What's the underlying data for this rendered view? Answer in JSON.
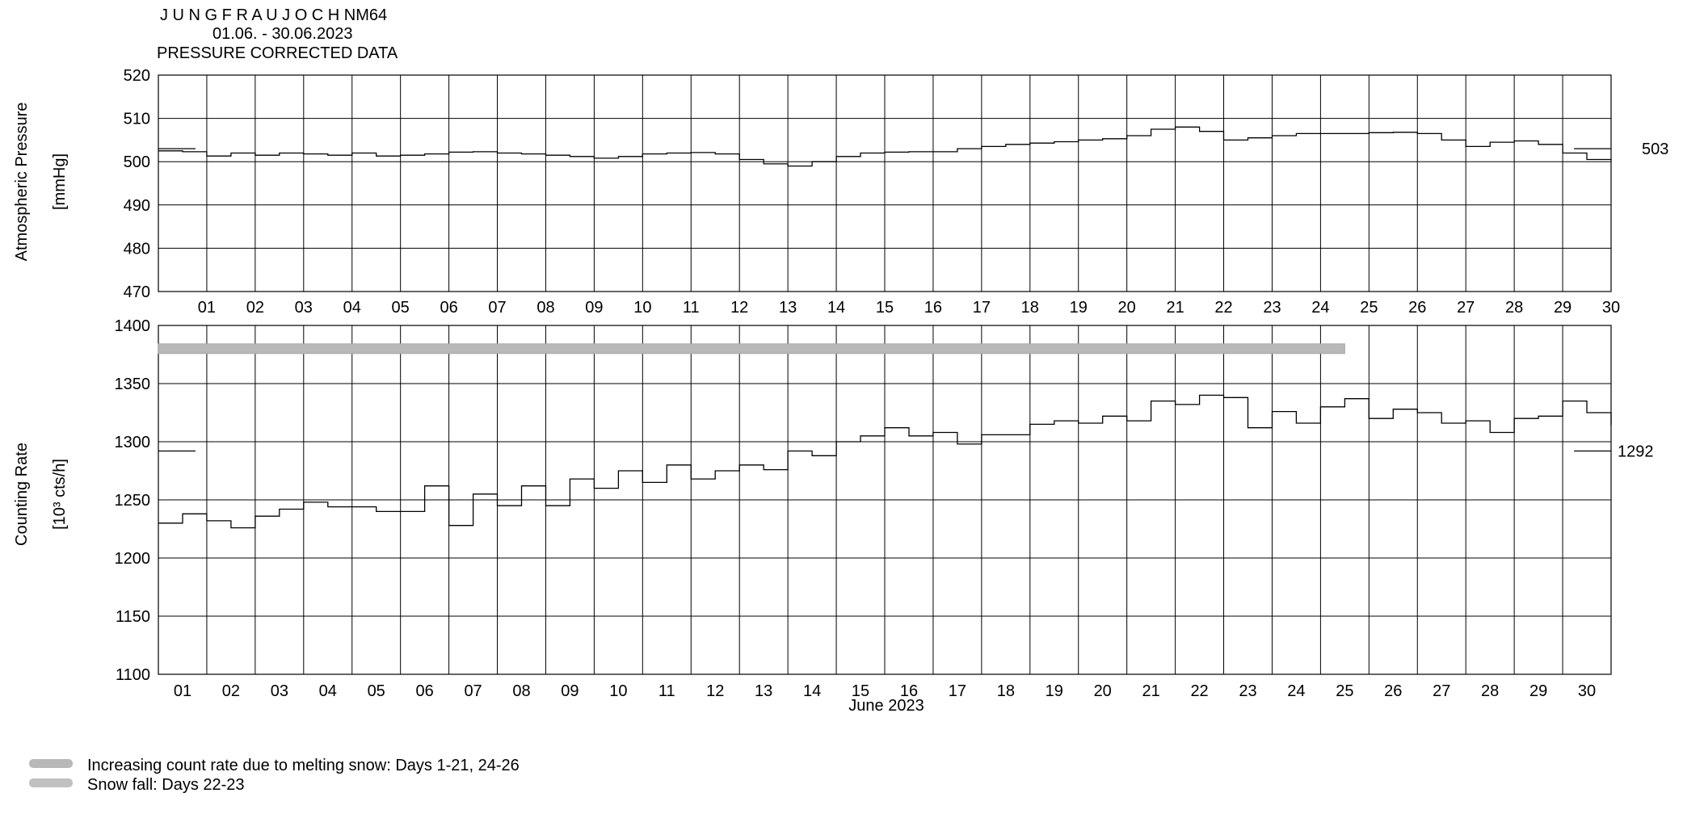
{
  "header": {
    "station": "J U N G F R A U J O C H  NM64",
    "period": "01.06. - 30.06.2023",
    "subtitle": "PRESSURE CORRECTED DATA"
  },
  "chart_data": [
    {
      "type": "line",
      "name": "pressure",
      "ylabel_line1": "Atmospheric Pressure",
      "ylabel_line2": "[mmHg]",
      "ylim": [
        470,
        520
      ],
      "yticks": [
        470,
        480,
        490,
        500,
        510,
        520
      ],
      "xlim": [
        0,
        30
      ],
      "xtick_labels": [
        "01",
        "02",
        "03",
        "04",
        "05",
        "06",
        "07",
        "08",
        "09",
        "10",
        "11",
        "12",
        "13",
        "14",
        "15",
        "16",
        "17",
        "18",
        "19",
        "20",
        "21",
        "22",
        "23",
        "24",
        "25",
        "26",
        "27",
        "28",
        "29",
        "30"
      ],
      "grid": true,
      "reference_value": 503,
      "reference_label": "503",
      "x": [
        0,
        0.5,
        1,
        1.5,
        2,
        2.5,
        3,
        3.5,
        4,
        4.5,
        5,
        5.5,
        6,
        6.5,
        7,
        7.5,
        8,
        8.5,
        9,
        9.5,
        10,
        10.5,
        11,
        11.5,
        12,
        12.5,
        13,
        13.5,
        14,
        14.5,
        15,
        15.5,
        16,
        16.5,
        17,
        17.5,
        18,
        18.5,
        19,
        19.5,
        20,
        20.5,
        21,
        21.5,
        22,
        22.5,
        23,
        23.5,
        24,
        24.5,
        25,
        25.5,
        26,
        26.5,
        27,
        27.5,
        28,
        28.5,
        29,
        29.5,
        30
      ],
      "values": [
        502.5,
        502.3,
        501.3,
        502.0,
        501.5,
        502.0,
        501.8,
        501.5,
        502.0,
        501.3,
        501.5,
        501.8,
        502.2,
        502.3,
        502.0,
        501.8,
        501.5,
        501.2,
        500.8,
        501.2,
        501.8,
        502.0,
        502.1,
        501.8,
        500.5,
        499.5,
        499.0,
        500.0,
        501.2,
        502.0,
        502.2,
        502.3,
        502.3,
        503.0,
        503.5,
        504.0,
        504.3,
        504.6,
        505.0,
        505.3,
        506.0,
        507.5,
        508.0,
        507.0,
        505.0,
        505.5,
        506.0,
        506.5,
        506.5,
        506.5,
        506.7,
        506.8,
        506.5,
        505.0,
        503.5,
        504.5,
        504.8,
        504.0,
        502.0,
        500.5,
        500.3
      ]
    },
    {
      "type": "line",
      "name": "counting_rate",
      "ylabel_line1": "Counting Rate",
      "ylabel_line2": "[10³ cts/h]",
      "ylim": [
        1100,
        1400
      ],
      "yticks": [
        1100,
        1150,
        1200,
        1250,
        1300,
        1350,
        1400
      ],
      "xlim": [
        0,
        30
      ],
      "xtick_labels": [
        "01",
        "02",
        "03",
        "04",
        "05",
        "06",
        "07",
        "08",
        "09",
        "10",
        "11",
        "12",
        "13",
        "14",
        "15",
        "16",
        "17",
        "18",
        "19",
        "20",
        "21",
        "22",
        "23",
        "24",
        "25",
        "26",
        "27",
        "28",
        "29",
        "30"
      ],
      "xlabel": "June 2023",
      "grid": true,
      "reference_value": 1292,
      "reference_label": "1292",
      "snow_band": {
        "x_start": 0,
        "x_end": 24.5,
        "y": 1380
      },
      "x": [
        0,
        0.5,
        1,
        1.5,
        2,
        2.5,
        3,
        3.5,
        4,
        4.5,
        5,
        5.5,
        6,
        6.5,
        7,
        7.5,
        8,
        8.5,
        9,
        9.5,
        10,
        10.5,
        11,
        11.5,
        12,
        12.5,
        13,
        13.5,
        14,
        14.5,
        15,
        15.5,
        16,
        16.5,
        17,
        17.5,
        18,
        18.5,
        19,
        19.5,
        20,
        20.5,
        21,
        21.5,
        22,
        22.5,
        23,
        23.5,
        24,
        24.5,
        25,
        25.5,
        26,
        26.5,
        27,
        27.5,
        28,
        28.5,
        29,
        29.5,
        30
      ],
      "values": [
        1230,
        1238,
        1232,
        1226,
        1236,
        1242,
        1248,
        1244,
        1244,
        1240,
        1240,
        1262,
        1228,
        1255,
        1245,
        1262,
        1245,
        1268,
        1260,
        1275,
        1265,
        1280,
        1268,
        1275,
        1280,
        1276,
        1292,
        1288,
        1300,
        1305,
        1312,
        1305,
        1308,
        1298,
        1306,
        1306,
        1315,
        1318,
        1316,
        1322,
        1318,
        1335,
        1332,
        1340,
        1338,
        1312,
        1326,
        1316,
        1330,
        1337,
        1320,
        1328,
        1325,
        1316,
        1318,
        1308,
        1320,
        1322,
        1335,
        1325,
        1314
      ]
    }
  ],
  "legend": [
    {
      "label": "Increasing count rate due to melting snow: Days 1-21, 24-26",
      "color": "#b8b8b8"
    },
    {
      "label": "Snow fall: Days 22-23",
      "color": "#c0c0c0"
    }
  ]
}
